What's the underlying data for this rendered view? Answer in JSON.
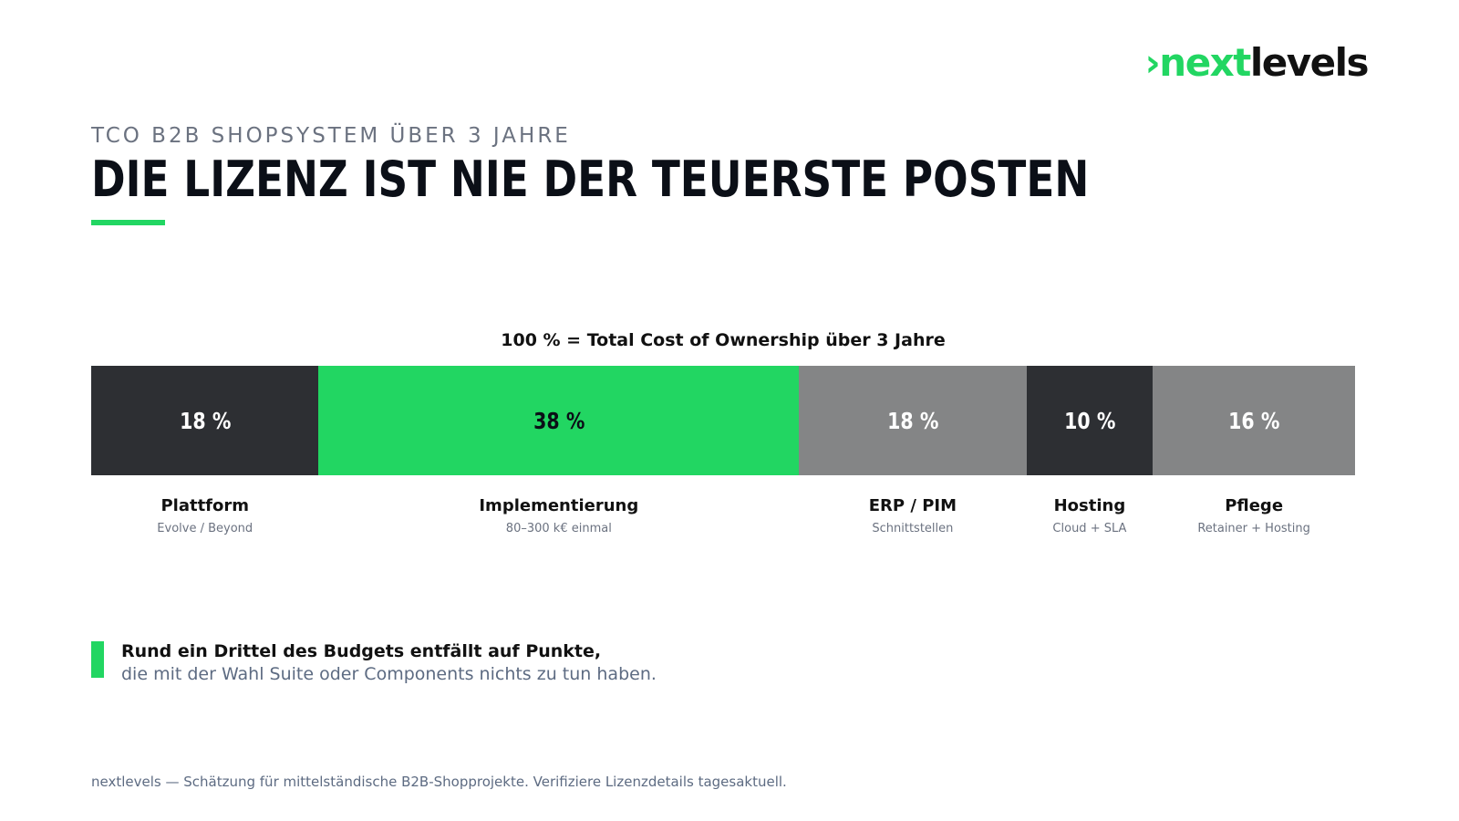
{
  "logo": {
    "mark": "›",
    "accent": "next",
    "rest": "levels"
  },
  "eyebrow": "TCO B2B SHOPSYSTEM ÜBER 3 JAHRE",
  "headline": "DIE LIZENZ IST NIE DER TEUERSTE POSTEN",
  "colors": {
    "brand_green": "#22d662",
    "dark": "#2d2f33",
    "gray": "#848586"
  },
  "chart_data": {
    "type": "bar",
    "stacked": true,
    "orientation": "horizontal",
    "caption": "100 % = Total Cost of Ownership über 3 Jahre",
    "unit": "%",
    "segments": [
      {
        "value": 18,
        "label": "18 %",
        "name": "Plattform",
        "sub": "Evolve / Beyond",
        "color": "#2d2f33",
        "text_color": "#ffffff"
      },
      {
        "value": 38,
        "label": "38 %",
        "name": "Implementierung",
        "sub": "80–300 k€ einmal",
        "color": "#22d662",
        "text_color": "#0b0f17"
      },
      {
        "value": 18,
        "label": "18 %",
        "name": "ERP / PIM",
        "sub": "Schnittstellen",
        "color": "#848586",
        "text_color": "#ffffff"
      },
      {
        "value": 10,
        "label": "10 %",
        "name": "Hosting",
        "sub": "Cloud + SLA",
        "color": "#2d2f33",
        "text_color": "#ffffff"
      },
      {
        "value": 16,
        "label": "16 %",
        "name": "Pflege",
        "sub": "Retainer + Hosting",
        "color": "#848586",
        "text_color": "#ffffff"
      }
    ]
  },
  "callout": {
    "line1": "Rund ein Drittel des Budgets entfällt auf Punkte,",
    "line2": "die mit der Wahl Suite oder Components nichts zu tun haben."
  },
  "footnote": "nextlevels — Schätzung für mittelständische B2B-Shopprojekte. Verifiziere Lizenzdetails tagesaktuell."
}
